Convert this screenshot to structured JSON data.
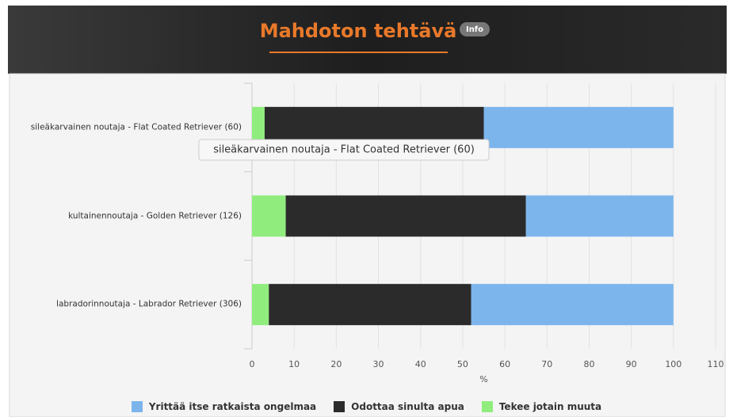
{
  "header": {
    "title": "Mahdoton tehtävä",
    "badge": "Info"
  },
  "chart_data": {
    "type": "stacked-bar-horizontal",
    "categories": [
      "sileäkarvainen noutaja - Flat Coated Retriever (60)",
      "kultainennoutaja - Golden Retriever (126)",
      "labradorinnoutaja - Labrador Retriever (306)"
    ],
    "series": [
      {
        "name": "Yrittää itse ratkaista ongelmaa",
        "color": "#7cb5ec",
        "values": [
          45,
          35,
          48
        ]
      },
      {
        "name": "Odottaa sinulta apua",
        "color": "#2b2b2b",
        "values": [
          52,
          57,
          48
        ]
      },
      {
        "name": "Tekee jotain muuta",
        "color": "#90ed7d",
        "values": [
          3,
          8,
          4
        ]
      }
    ],
    "xlim": [
      0,
      110
    ],
    "xticks": [
      0,
      10,
      20,
      30,
      40,
      50,
      60,
      70,
      80,
      90,
      100,
      110
    ],
    "xlabel": "%",
    "grid": true,
    "tooltip": "sileäkarvainen noutaja - Flat Coated Retriever (60)"
  }
}
